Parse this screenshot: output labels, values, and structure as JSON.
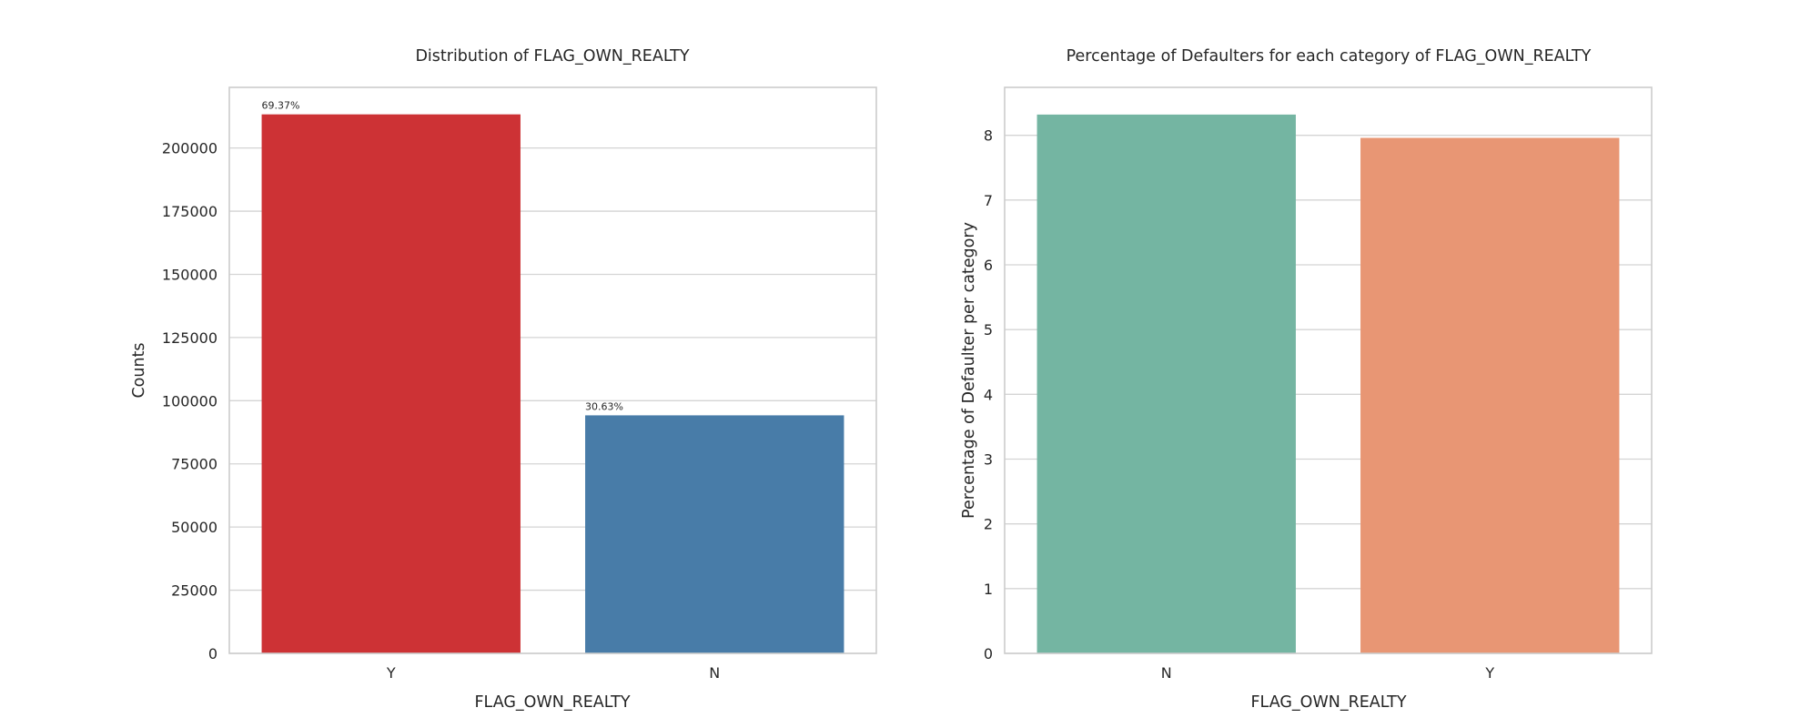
{
  "chart_data": [
    {
      "type": "bar",
      "title": "Distribution of FLAG_OWN_REALTY",
      "xlabel": "FLAG_OWN_REALTY",
      "ylabel": "Counts",
      "categories": [
        "Y",
        "N"
      ],
      "values": [
        213312,
        94199
      ],
      "data_labels": [
        "69.37%",
        "30.63%"
      ],
      "colors": [
        "#cd3235",
        "#487ca8"
      ],
      "ylim": [
        0,
        224000
      ],
      "yticks": [
        0,
        25000,
        50000,
        75000,
        100000,
        125000,
        150000,
        175000,
        200000
      ],
      "ytick_labels": [
        "0",
        "25000",
        "50000",
        "75000",
        "100000",
        "125000",
        "150000",
        "175000",
        "200000"
      ],
      "grid": true
    },
    {
      "type": "bar",
      "title": "Percentage of Defaulters for each category of FLAG_OWN_REALTY",
      "xlabel": "FLAG_OWN_REALTY",
      "ylabel": "Percentage of Defaulter per category",
      "categories": [
        "N",
        "Y"
      ],
      "values": [
        8.32,
        7.96
      ],
      "colors": [
        "#74b5a2",
        "#e89674"
      ],
      "ylim": [
        0,
        8.74
      ],
      "yticks": [
        0,
        1,
        2,
        3,
        4,
        5,
        6,
        7,
        8
      ],
      "ytick_labels": [
        "0",
        "1",
        "2",
        "3",
        "4",
        "5",
        "6",
        "7",
        "8"
      ],
      "grid": true
    }
  ]
}
